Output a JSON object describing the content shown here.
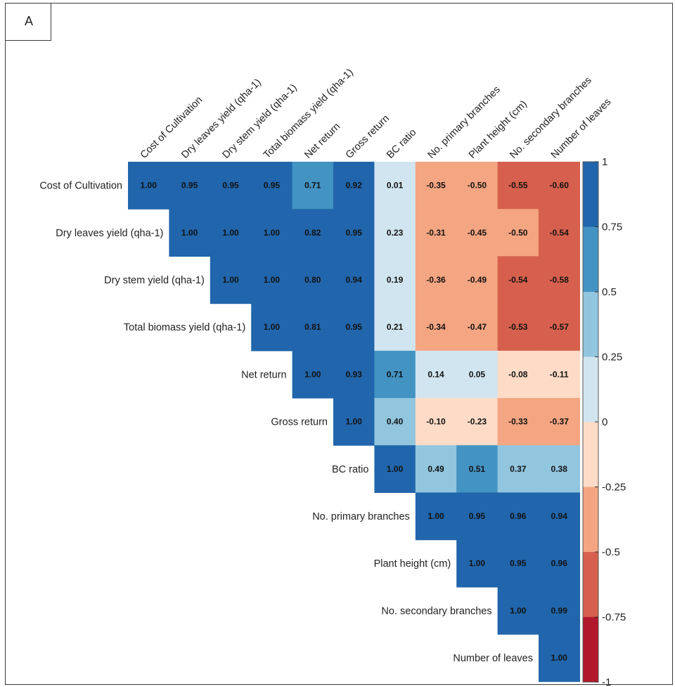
{
  "panel_label": "A",
  "chart_data": {
    "type": "heatmap",
    "subtype": "upper-triangular correlation matrix",
    "variables": [
      "Cost of Cultivation",
      "Dry leaves yield (qha-1)",
      "Dry stem yield (qha-1)",
      "Total biomass yield (qha-1)",
      "Net return",
      "Gross return",
      "BC ratio",
      "No. primary branches",
      "Plant height (cm)",
      "No. secondary branches",
      "Number of leaves"
    ],
    "matrix": [
      [
        "1.00",
        "0.95",
        "0.95",
        "0.95",
        "0.71",
        "0.92",
        "0.01",
        "-0.35",
        "-0.50",
        "-0.55",
        "-0.60"
      ],
      [
        null,
        "1.00",
        "1.00",
        "1.00",
        "0.82",
        "0.95",
        "0.23",
        "-0.31",
        "-0.45",
        "-0.50",
        "-0.54"
      ],
      [
        null,
        null,
        "1.00",
        "1.00",
        "0.80",
        "0.94",
        "0.19",
        "-0.36",
        "-0.49",
        "-0.54",
        "-0.58"
      ],
      [
        null,
        null,
        null,
        "1.00",
        "0.81",
        "0.95",
        "0.21",
        "-0.34",
        "-0.47",
        "-0.53",
        "-0.57"
      ],
      [
        null,
        null,
        null,
        null,
        "1.00",
        "0.93",
        "0.71",
        "0.14",
        "0.05",
        "-0.08",
        "-0.11"
      ],
      [
        null,
        null,
        null,
        null,
        null,
        "1.00",
        "0.40",
        "-0.10",
        "-0.23",
        "-0.33",
        "-0.37"
      ],
      [
        null,
        null,
        null,
        null,
        null,
        null,
        "1.00",
        "0.49",
        "0.51",
        "0.37",
        "0.38"
      ],
      [
        null,
        null,
        null,
        null,
        null,
        null,
        null,
        "1.00",
        "0.95",
        "0.96",
        "0.94"
      ],
      [
        null,
        null,
        null,
        null,
        null,
        null,
        null,
        null,
        "1.00",
        "0.95",
        "0.96"
      ],
      [
        null,
        null,
        null,
        null,
        null,
        null,
        null,
        null,
        null,
        "1.00",
        "0.99"
      ],
      [
        null,
        null,
        null,
        null,
        null,
        null,
        null,
        null,
        null,
        null,
        "1.00"
      ]
    ],
    "color_scale": {
      "range": [
        -1,
        1
      ],
      "ticks": [
        "1",
        "0.75",
        "0.5",
        "0.25",
        "0",
        "-0.25",
        "-0.5",
        "-0.75",
        "-1"
      ],
      "bins": [
        {
          "min": 0.75,
          "max": 1.0,
          "color": "#2166ac"
        },
        {
          "min": 0.5,
          "max": 0.75,
          "color": "#4393c3"
        },
        {
          "min": 0.25,
          "max": 0.5,
          "color": "#92c5de"
        },
        {
          "min": 0.0,
          "max": 0.25,
          "color": "#d1e5f0"
        },
        {
          "min": -0.25,
          "max": 0.0,
          "color": "#fddbc7"
        },
        {
          "min": -0.5,
          "max": -0.25,
          "color": "#f4a582"
        },
        {
          "min": -0.75,
          "max": -0.5,
          "color": "#d6604d"
        },
        {
          "min": -1.0,
          "max": -0.75,
          "color": "#b2182b"
        }
      ]
    },
    "legend_position": "right"
  }
}
